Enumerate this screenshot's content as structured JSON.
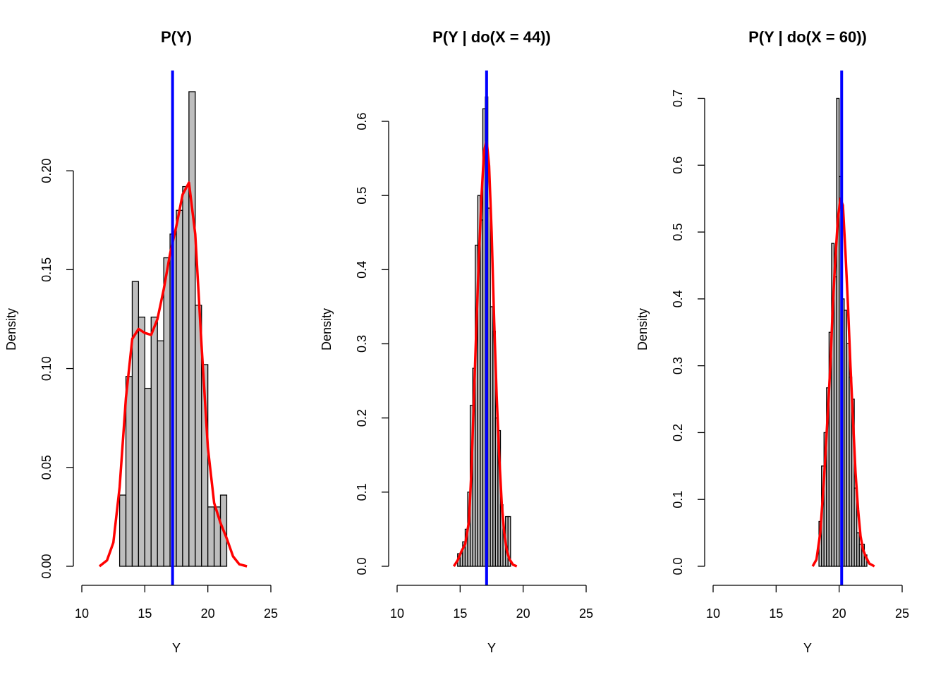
{
  "colors": {
    "bar_fill": "#bebebe",
    "bar_stroke": "#000000",
    "density_line": "#ff0000",
    "mean_line": "#0000ff"
  },
  "chart_data": [
    {
      "type": "bar",
      "title": "P(Y)",
      "xlabel": "Y",
      "ylabel": "Density",
      "xlim": [
        10,
        25
      ],
      "ylim": [
        0,
        0.24
      ],
      "xticks": [
        10,
        15,
        20,
        25
      ],
      "yticks": [
        "0.00",
        "0.05",
        "0.10",
        "0.15",
        "0.20"
      ],
      "bin_width": 0.5,
      "bin_edges": [
        13.0,
        13.5,
        14.0,
        14.5,
        15.0,
        15.5,
        16.0,
        16.5,
        17.0,
        17.5,
        18.0,
        18.5,
        19.0,
        19.5,
        20.0,
        20.5,
        21.0,
        21.5
      ],
      "values": [
        0.036,
        0.096,
        0.144,
        0.126,
        0.09,
        0.126,
        0.114,
        0.156,
        0.168,
        0.18,
        0.192,
        0.24,
        0.132,
        0.102,
        0.03,
        0.03,
        0.036
      ],
      "mean_line_x": 17.2,
      "density_curve": {
        "x": [
          11.4,
          12.0,
          12.5,
          13.0,
          13.5,
          14.0,
          14.5,
          15.0,
          15.5,
          16.0,
          16.5,
          17.0,
          17.5,
          18.0,
          18.5,
          19.0,
          19.5,
          20.0,
          20.5,
          21.0,
          21.5,
          22.0,
          22.5,
          23.1
        ],
        "y": [
          0.0,
          0.003,
          0.012,
          0.04,
          0.085,
          0.115,
          0.12,
          0.118,
          0.117,
          0.125,
          0.14,
          0.158,
          0.172,
          0.188,
          0.194,
          0.168,
          0.112,
          0.06,
          0.032,
          0.022,
          0.014,
          0.005,
          0.001,
          0.0
        ]
      }
    },
    {
      "type": "bar",
      "title": "P(Y | do(X = 44))",
      "xlabel": "Y",
      "ylabel": "Density",
      "xlim": [
        10,
        25
      ],
      "ylim": [
        0,
        0.64
      ],
      "xticks": [
        10,
        15,
        20,
        25
      ],
      "yticks": [
        "0.0",
        "0.1",
        "0.2",
        "0.3",
        "0.4",
        "0.5",
        "0.6"
      ],
      "bin_width": 0.2,
      "bin_edges": [
        14.8,
        15.0,
        15.2,
        15.4,
        15.6,
        15.8,
        16.0,
        16.2,
        16.4,
        16.6,
        16.8,
        17.0,
        17.2,
        17.4,
        17.6,
        17.8,
        18.0,
        18.2,
        18.4,
        18.6,
        18.8,
        19.0
      ],
      "values": [
        0.017,
        0.017,
        0.033,
        0.05,
        0.1,
        0.217,
        0.267,
        0.433,
        0.5,
        0.467,
        0.617,
        0.633,
        0.483,
        0.35,
        0.317,
        0.2,
        0.183,
        0.083,
        0.05,
        0.067,
        0.067
      ],
      "mean_line_x": 17.1,
      "density_curve": {
        "x": [
          14.5,
          14.8,
          15.1,
          15.4,
          15.7,
          15.9,
          16.1,
          16.3,
          16.5,
          16.7,
          16.9,
          17.1,
          17.3,
          17.5,
          17.7,
          17.9,
          18.1,
          18.3,
          18.5,
          18.7,
          18.9,
          19.2,
          19.5
        ],
        "y": [
          0.0,
          0.008,
          0.02,
          0.03,
          0.06,
          0.13,
          0.23,
          0.33,
          0.42,
          0.5,
          0.56,
          0.575,
          0.54,
          0.45,
          0.33,
          0.23,
          0.15,
          0.085,
          0.045,
          0.022,
          0.01,
          0.002,
          0.0
        ]
      }
    },
    {
      "type": "bar",
      "title": "P(Y | do(X = 60))",
      "xlabel": "Y",
      "ylabel": "Density",
      "xlim": [
        10,
        25
      ],
      "ylim": [
        0,
        0.71
      ],
      "xticks": [
        10,
        15,
        20,
        25
      ],
      "yticks": [
        "0.0",
        "0.1",
        "0.2",
        "0.3",
        "0.4",
        "0.5",
        "0.6",
        "0.7"
      ],
      "bin_width": 0.2,
      "bin_edges": [
        18.4,
        18.6,
        18.8,
        19.0,
        19.2,
        19.4,
        19.6,
        19.8,
        20.0,
        20.2,
        20.4,
        20.6,
        20.8,
        21.0,
        21.2,
        21.4,
        21.6,
        21.8,
        22.0,
        22.2
      ],
      "values": [
        0.067,
        0.15,
        0.2,
        0.267,
        0.35,
        0.483,
        0.433,
        0.7,
        0.583,
        0.4,
        0.383,
        0.333,
        0.283,
        0.25,
        0.117,
        0.05,
        0.033,
        0.033,
        0.017
      ],
      "mean_line_x": 20.2,
      "density_curve": {
        "x": [
          17.9,
          18.2,
          18.5,
          18.8,
          19.1,
          19.3,
          19.5,
          19.7,
          19.9,
          20.1,
          20.3,
          20.5,
          20.7,
          20.9,
          21.1,
          21.3,
          21.5,
          21.7,
          21.9,
          22.1,
          22.4,
          22.8
        ],
        "y": [
          0.0,
          0.01,
          0.05,
          0.13,
          0.23,
          0.3,
          0.39,
          0.46,
          0.52,
          0.55,
          0.54,
          0.47,
          0.39,
          0.3,
          0.22,
          0.14,
          0.085,
          0.045,
          0.025,
          0.015,
          0.004,
          0.0
        ]
      }
    }
  ]
}
